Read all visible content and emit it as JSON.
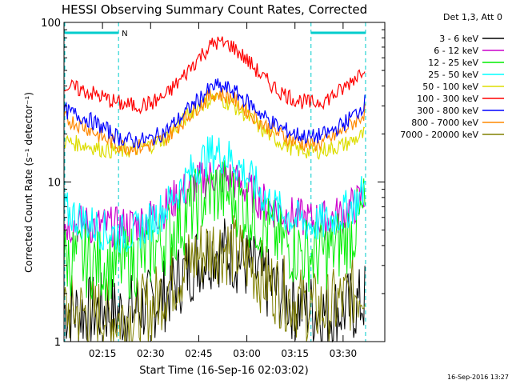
{
  "chart_data": {
    "type": "line",
    "title": "HESSI Observing Summary Count Rates, Corrected",
    "xlabel": "Start Time (16-Sep-16 02:03:02)",
    "ylabel": "Corrected Count Rate (s⁻¹ detector⁻¹)",
    "y_scale": "log",
    "ylim": [
      1,
      100
    ],
    "xlim": [
      "02:03",
      "03:43"
    ],
    "x_ticks": [
      "02:15",
      "02:30",
      "02:45",
      "03:00",
      "03:15",
      "03:30"
    ],
    "y_ticks": [
      "1",
      "10",
      "100"
    ],
    "legend_header": "Det 1,3, Att 0",
    "legend_position": "right",
    "timestamp": "16-Sep-2016 13:27",
    "night_marker": "N",
    "night_intervals": [
      [
        "02:03",
        "02:20"
      ],
      [
        "03:20",
        "03:37"
      ]
    ],
    "grid": false,
    "x": [
      "02:03",
      "02:10",
      "02:15",
      "02:20",
      "02:25",
      "02:30",
      "02:35",
      "02:40",
      "02:45",
      "02:50",
      "02:55",
      "03:00",
      "03:05",
      "03:10",
      "03:15",
      "03:20",
      "03:25",
      "03:30",
      "03:35",
      "03:37"
    ],
    "series": [
      {
        "name": "3 - 6 keV",
        "color": "#000000",
        "values": [
          1.6,
          1.5,
          1.6,
          1.5,
          1.6,
          1.7,
          2.0,
          2.6,
          3.3,
          3.8,
          3.6,
          3.0,
          2.4,
          2.0,
          1.7,
          1.6,
          1.5,
          1.6,
          1.7,
          1.9
        ]
      },
      {
        "name": "6 - 12 keV",
        "color": "#cc00cc",
        "values": [
          5.5,
          5.4,
          5.3,
          5.2,
          5.4,
          6.0,
          7.0,
          8.6,
          10.0,
          11.0,
          10.5,
          9.0,
          7.5,
          6.5,
          6.0,
          5.7,
          5.8,
          6.3,
          7.5,
          8.5
        ]
      },
      {
        "name": "12 - 25 keV",
        "color": "#00ee00",
        "values": [
          3.3,
          3.2,
          3.1,
          3.0,
          3.2,
          3.7,
          4.5,
          5.8,
          7.5,
          8.8,
          8.3,
          6.8,
          5.3,
          4.3,
          3.8,
          3.5,
          3.6,
          4.2,
          5.5,
          7.0
        ]
      },
      {
        "name": "25 - 50 keV",
        "color": "#00ffff",
        "values": [
          6.6,
          5.6,
          5.0,
          4.7,
          4.8,
          5.6,
          7.0,
          9.5,
          13.0,
          15.5,
          14.0,
          11.0,
          8.2,
          6.6,
          5.8,
          5.4,
          5.6,
          6.4,
          7.8,
          9.5
        ]
      },
      {
        "name": "50 - 100 keV",
        "color": "#dddd00",
        "values": [
          18,
          17,
          16,
          15.5,
          16,
          17,
          19,
          24,
          30,
          34,
          31,
          26,
          21,
          18,
          16,
          15.5,
          16,
          17,
          19,
          20
        ]
      },
      {
        "name": "100 - 300 keV",
        "color": "#ff0000",
        "values": [
          40,
          37,
          34,
          31,
          30,
          31,
          35,
          45,
          60,
          75,
          72,
          58,
          45,
          37,
          33,
          31,
          33,
          38,
          48,
          55
        ]
      },
      {
        "name": "300 - 800 keV",
        "color": "#0000ff",
        "values": [
          28,
          25,
          22,
          19,
          18,
          18.5,
          21,
          26,
          33,
          40,
          38,
          32,
          26,
          22,
          20,
          19,
          20,
          23,
          28,
          32
        ]
      },
      {
        "name": "800 - 7000 keV",
        "color": "#ff8800",
        "values": [
          25,
          22,
          19,
          17,
          16.5,
          17,
          19,
          24,
          30,
          36,
          34,
          28,
          23,
          20,
          18,
          17,
          18,
          21,
          25,
          28
        ]
      },
      {
        "name": "7000 - 20000 keV",
        "color": "#808000",
        "values": [
          1.6,
          1.5,
          1.5,
          1.4,
          1.5,
          1.6,
          2.2,
          2.8,
          3.5,
          4.0,
          3.8,
          3.2,
          2.5,
          2.1,
          1.8,
          1.6,
          1.6,
          1.8,
          2.1,
          2.5
        ]
      }
    ]
  }
}
